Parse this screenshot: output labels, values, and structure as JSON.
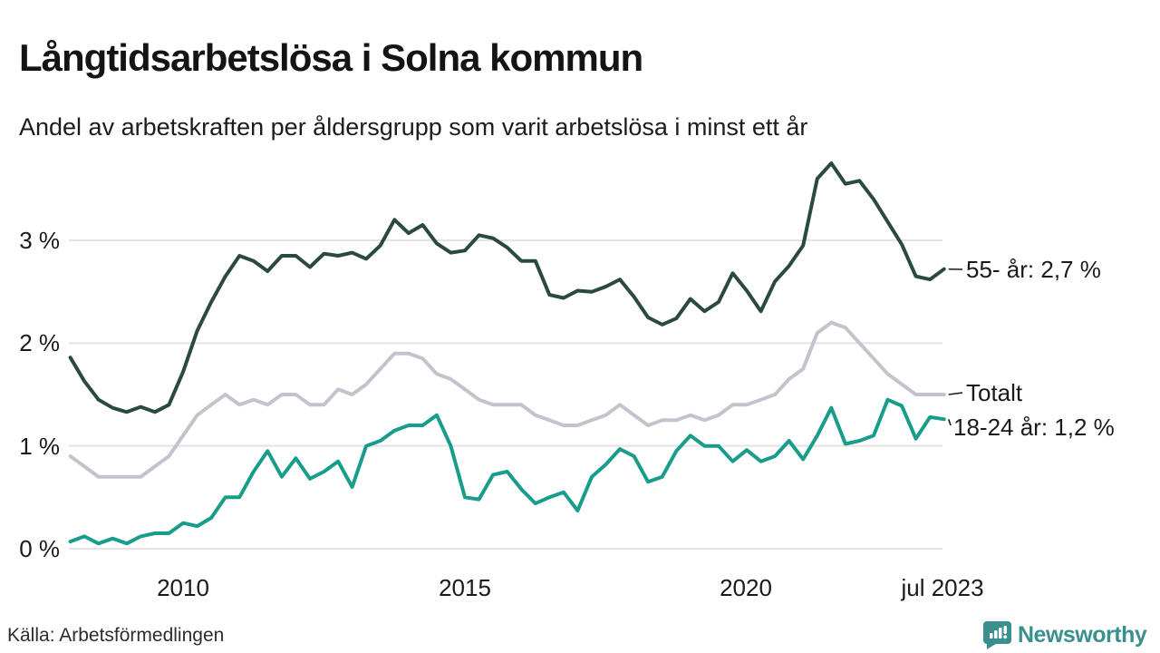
{
  "chart_data": {
    "type": "line",
    "title": "Långtidsarbetslösa i Solna kommun",
    "subtitle": "Andel av arbetskraften per åldersgrupp som varit arbetslösa i minst ett år",
    "source": "Källa: Arbetsförmedlingen",
    "xlabel": "",
    "ylabel": "",
    "grid": true,
    "legend_position": "right-end-labels",
    "ylim": [
      0,
      3.9
    ],
    "x_start_year": 2008.0,
    "x_step_years": 0.25,
    "x_end": "jul 2023",
    "yticks": [
      {
        "value": 0,
        "label": "0 %"
      },
      {
        "value": 1,
        "label": "1 %"
      },
      {
        "value": 2,
        "label": "2 %"
      },
      {
        "value": 3,
        "label": "3 %"
      }
    ],
    "xticks": [
      {
        "year": 2010,
        "label": "2010"
      },
      {
        "year": 2015,
        "label": "2015"
      },
      {
        "year": 2020,
        "label": "2020"
      },
      {
        "year": 2023.4,
        "label": "jul 2023"
      }
    ],
    "series": [
      {
        "name": "Totalt",
        "label": "Totalt",
        "color": "#c4c3cd",
        "values": [
          0.9,
          0.8,
          0.7,
          0.7,
          0.7,
          0.7,
          0.8,
          0.9,
          1.1,
          1.3,
          1.4,
          1.5,
          1.4,
          1.45,
          1.4,
          1.5,
          1.5,
          1.4,
          1.4,
          1.55,
          1.5,
          1.6,
          1.75,
          1.9,
          1.9,
          1.85,
          1.7,
          1.65,
          1.55,
          1.45,
          1.4,
          1.4,
          1.4,
          1.3,
          1.25,
          1.2,
          1.2,
          1.25,
          1.3,
          1.4,
          1.3,
          1.2,
          1.25,
          1.25,
          1.3,
          1.25,
          1.3,
          1.4,
          1.4,
          1.45,
          1.5,
          1.65,
          1.75,
          2.1,
          2.2,
          2.15,
          2.0,
          1.85,
          1.7,
          1.6,
          1.5,
          1.5,
          1.5
        ]
      },
      {
        "name": "18-24 år",
        "label": "18-24 år: 1,2 %",
        "color": "#189d8b",
        "values": [
          0.07,
          0.12,
          0.05,
          0.1,
          0.05,
          0.12,
          0.15,
          0.15,
          0.25,
          0.22,
          0.3,
          0.5,
          0.5,
          0.75,
          0.95,
          0.7,
          0.88,
          0.68,
          0.75,
          0.85,
          0.6,
          1.0,
          1.05,
          1.15,
          1.2,
          1.2,
          1.3,
          1.0,
          0.5,
          0.48,
          0.72,
          0.75,
          0.58,
          0.44,
          0.5,
          0.55,
          0.37,
          0.7,
          0.82,
          0.97,
          0.9,
          0.65,
          0.7,
          0.95,
          1.1,
          1.0,
          1.0,
          0.85,
          0.96,
          0.85,
          0.9,
          1.05,
          0.87,
          1.1,
          1.37,
          1.02,
          1.05,
          1.1,
          1.45,
          1.39,
          1.07,
          1.28,
          1.26
        ]
      },
      {
        "name": "55- år",
        "label": "55- år: 2,7 %",
        "color": "#2b4a3e",
        "values": [
          1.86,
          1.63,
          1.45,
          1.37,
          1.33,
          1.38,
          1.33,
          1.4,
          1.72,
          2.12,
          2.4,
          2.65,
          2.85,
          2.8,
          2.7,
          2.85,
          2.85,
          2.74,
          2.87,
          2.85,
          2.88,
          2.82,
          2.95,
          3.2,
          3.07,
          3.15,
          2.97,
          2.88,
          2.9,
          3.05,
          3.02,
          2.93,
          2.8,
          2.8,
          2.47,
          2.44,
          2.51,
          2.5,
          2.55,
          2.62,
          2.45,
          2.25,
          2.18,
          2.24,
          2.43,
          2.31,
          2.4,
          2.68,
          2.51,
          2.31,
          2.6,
          2.75,
          2.95,
          3.6,
          3.75,
          3.55,
          3.58,
          3.4,
          3.18,
          2.96,
          2.65,
          2.62,
          2.72
        ]
      }
    ]
  },
  "footer": {
    "brand": "Newsworthy"
  }
}
